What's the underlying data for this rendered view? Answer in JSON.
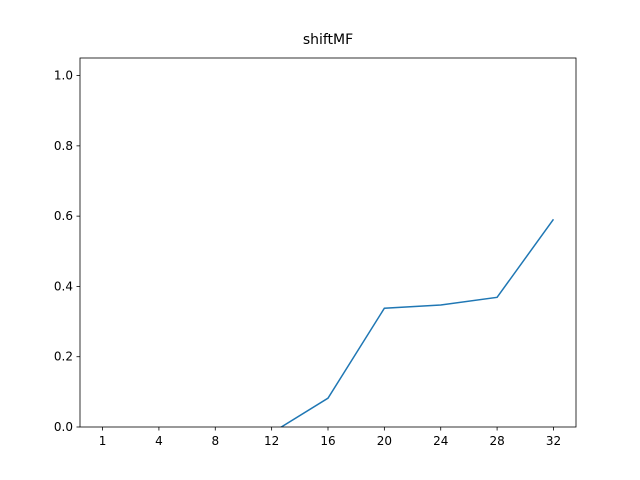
{
  "chart_data": {
    "type": "line",
    "title": "shiftMF",
    "categories": [
      "1",
      "4",
      "8",
      "12",
      "16",
      "20",
      "24",
      "28",
      "32"
    ],
    "series": [
      {
        "name": "shiftMF",
        "color": "#1f77b4",
        "values": [
          null,
          null,
          null,
          -0.017,
          0.082,
          0.338,
          0.347,
          0.369,
          0.591
        ]
      }
    ],
    "ylim": [
      0,
      1.05
    ],
    "yticks": [
      {
        "value": 0,
        "label": "0.0"
      },
      0.2,
      0.4,
      0.6,
      0.8,
      {
        "value": 1,
        "label": "1.0"
      }
    ]
  }
}
